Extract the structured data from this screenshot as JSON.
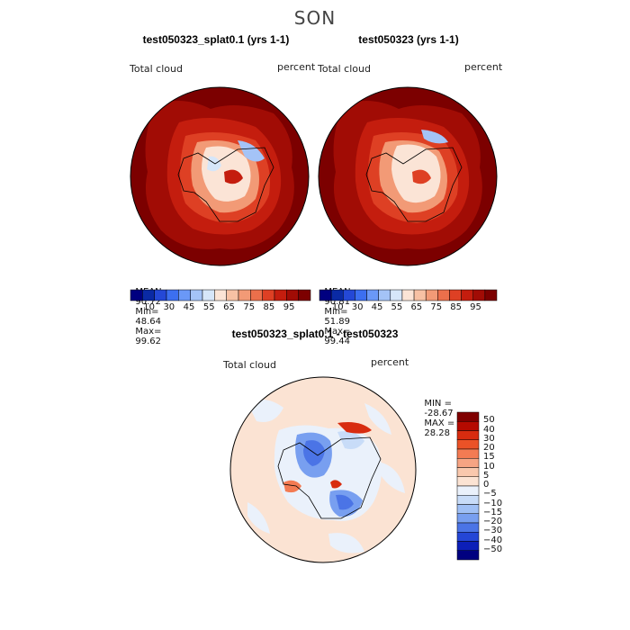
{
  "figure": {
    "season": "SON"
  },
  "panels": [
    {
      "title": "test050323_splat0.1 (yrs 1-1)",
      "variable": "Total cloud",
      "units": "percent",
      "stats": {
        "mean_label": "MEAN=",
        "mean": "90.72",
        "min_label": "Min=",
        "min": "48.64",
        "max_label": "Max=",
        "max": "99.62"
      }
    },
    {
      "title": "test050323 (yrs 1-1)",
      "variable": "Total cloud",
      "units": "percent",
      "stats": {
        "mean_label": "MEAN=",
        "mean": "90.81",
        "min_label": "Min=",
        "min": "51.89",
        "max_label": "Max=",
        "max": "99.44"
      }
    }
  ],
  "abs_colorbar": {
    "colors": [
      "#000080",
      "#0a2aa5",
      "#2448d6",
      "#3c6ff0",
      "#6a98f7",
      "#a4c3f7",
      "#d6e6f9",
      "#fbe4d6",
      "#f7c1a4",
      "#f29a76",
      "#eb6f4b",
      "#de4024",
      "#c41d0e",
      "#a10c05",
      "#7c0000"
    ],
    "tick_labels": [
      "10",
      "30",
      "45",
      "55",
      "65",
      "75",
      "85",
      "95"
    ]
  },
  "diff_panel": {
    "title": "test050323_splat0.1 - test050323",
    "variable": "Total cloud",
    "units": "percent",
    "min_label": "MIN =",
    "min": "-28.67",
    "max_label": "MAX =",
    "max": "28.28"
  },
  "diff_colorbar": {
    "colors": [
      "#800000",
      "#b50a00",
      "#d82c0f",
      "#eb5227",
      "#f37b53",
      "#f6a483",
      "#f9c8ad",
      "#fbe3d3",
      "#eaf1fb",
      "#c8dcf8",
      "#a0c0f5",
      "#789ff0",
      "#4b74e6",
      "#2446d6",
      "#0c1fb8",
      "#000080"
    ],
    "tick_labels": [
      "50",
      "40",
      "30",
      "20",
      "15",
      "10",
      "5",
      "0",
      "−5",
      "−10",
      "−15",
      "−20",
      "−30",
      "−40",
      "−50"
    ]
  },
  "chart_data": [
    {
      "type": "heatmap",
      "title": "test050323_splat0.1 (yrs 1-1)",
      "variable": "Total cloud",
      "units": "percent",
      "mean": 90.72,
      "min": 48.64,
      "max": 99.62
    },
    {
      "type": "heatmap",
      "title": "test050323 (yrs 1-1)",
      "variable": "Total cloud",
      "units": "percent",
      "mean": 90.81,
      "min": 51.89,
      "max": 99.44
    },
    {
      "type": "heatmap",
      "title": "test050323_splat0.1 - test050323",
      "variable": "Total cloud",
      "units": "percent",
      "min": -28.67,
      "max": 28.28
    }
  ]
}
